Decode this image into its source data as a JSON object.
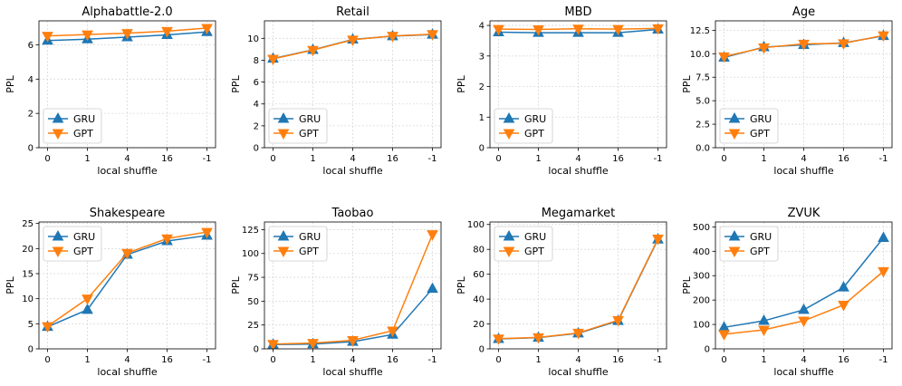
{
  "colors": {
    "gru": "#1f77b4",
    "gpt": "#ff7f0e"
  },
  "chart_data": [
    {
      "type": "line",
      "title": "Alphabattle-2.0",
      "xlabel": "local shuffle",
      "ylabel": "PPL",
      "categories": [
        "0",
        "1",
        "4",
        "16",
        "-1"
      ],
      "ylim": [
        0,
        7.4
      ],
      "yticks": [
        0,
        2,
        4,
        6
      ],
      "ytick_labels": [
        "0",
        "2",
        "4",
        "6"
      ],
      "legend": "lower-left",
      "series": [
        {
          "name": "GRU",
          "values": [
            6.25,
            6.33,
            6.45,
            6.58,
            6.75
          ]
        },
        {
          "name": "GPT",
          "values": [
            6.52,
            6.6,
            6.68,
            6.8,
            6.98
          ]
        }
      ]
    },
    {
      "type": "line",
      "title": "Retail",
      "xlabel": "local shuffle",
      "ylabel": "PPL",
      "categories": [
        "0",
        "1",
        "4",
        "16",
        "-1"
      ],
      "ylim": [
        0,
        11.6
      ],
      "yticks": [
        0,
        2,
        4,
        6,
        8,
        10
      ],
      "ytick_labels": [
        "0",
        "2",
        "4",
        "6",
        "8",
        "10"
      ],
      "legend": "lower-left",
      "series": [
        {
          "name": "GRU",
          "values": [
            8.15,
            8.95,
            9.9,
            10.2,
            10.35
          ]
        },
        {
          "name": "GPT",
          "values": [
            8.12,
            8.93,
            9.87,
            10.22,
            10.38
          ]
        }
      ]
    },
    {
      "type": "line",
      "title": "MBD",
      "xlabel": "local shuffle",
      "ylabel": "PPL",
      "categories": [
        "0",
        "1",
        "4",
        "16",
        "-1"
      ],
      "ylim": [
        0,
        4.15
      ],
      "yticks": [
        0,
        1,
        2,
        3,
        4
      ],
      "ytick_labels": [
        "0",
        "1",
        "2",
        "3",
        "4"
      ],
      "legend": "lower-left",
      "series": [
        {
          "name": "GRU",
          "values": [
            3.78,
            3.76,
            3.76,
            3.76,
            3.87
          ]
        },
        {
          "name": "GPT",
          "values": [
            3.88,
            3.87,
            3.89,
            3.88,
            3.9
          ]
        }
      ]
    },
    {
      "type": "line",
      "title": "Age",
      "xlabel": "local shuffle",
      "ylabel": "PPL",
      "categories": [
        "0",
        "1",
        "4",
        "16",
        "-1"
      ],
      "ylim": [
        0,
        13.5
      ],
      "yticks": [
        0,
        2.5,
        5,
        7.5,
        10,
        12.5
      ],
      "ytick_labels": [
        "0.0",
        "2.5",
        "5.0",
        "7.5",
        "10.0",
        "12.5"
      ],
      "legend": "lower-left",
      "series": [
        {
          "name": "GRU",
          "values": [
            9.6,
            10.7,
            10.95,
            11.15,
            11.9
          ]
        },
        {
          "name": "GPT",
          "values": [
            9.7,
            10.65,
            11.05,
            11.1,
            11.95
          ]
        }
      ]
    },
    {
      "type": "line",
      "title": "Shakespeare",
      "xlabel": "local shuffle",
      "ylabel": "PPL",
      "categories": [
        "0",
        "1",
        "4",
        "16",
        "-1"
      ],
      "ylim": [
        0,
        25.3
      ],
      "yticks": [
        0,
        5,
        10,
        15,
        20,
        25
      ],
      "ytick_labels": [
        "0",
        "5",
        "10",
        "15",
        "20",
        "25"
      ],
      "legend": "upper-left",
      "series": [
        {
          "name": "GRU",
          "values": [
            4.4,
            7.8,
            18.8,
            21.5,
            22.6
          ]
        },
        {
          "name": "GPT",
          "values": [
            4.5,
            10.0,
            19.1,
            22.0,
            23.3
          ]
        }
      ]
    },
    {
      "type": "line",
      "title": "Taobao",
      "xlabel": "local shuffle",
      "ylabel": "PPL",
      "categories": [
        "0",
        "1",
        "4",
        "16",
        "-1"
      ],
      "ylim": [
        0,
        133
      ],
      "yticks": [
        0,
        25,
        50,
        75,
        100,
        125
      ],
      "ytick_labels": [
        "0",
        "25",
        "50",
        "75",
        "100",
        "125"
      ],
      "legend": "upper-left",
      "series": [
        {
          "name": "GRU",
          "values": [
            4.5,
            5.0,
            7.5,
            15.0,
            63.0
          ]
        },
        {
          "name": "GPT",
          "values": [
            5.0,
            6.0,
            9.0,
            19.0,
            120.0
          ]
        }
      ]
    },
    {
      "type": "line",
      "title": "Megamarket",
      "xlabel": "local shuffle",
      "ylabel": "PPL",
      "categories": [
        "0",
        "1",
        "4",
        "16",
        "-1"
      ],
      "ylim": [
        0,
        102
      ],
      "yticks": [
        0,
        20,
        40,
        60,
        80,
        100
      ],
      "ytick_labels": [
        "0",
        "20",
        "40",
        "60",
        "80",
        "100"
      ],
      "legend": "upper-left",
      "series": [
        {
          "name": "GRU",
          "values": [
            8.0,
            9.0,
            12.5,
            22.5,
            88.0
          ]
        },
        {
          "name": "GPT",
          "values": [
            8.2,
            9.2,
            12.8,
            23.0,
            88.5
          ]
        }
      ]
    },
    {
      "type": "line",
      "title": "ZVUK",
      "xlabel": "local shuffle",
      "ylabel": "PPL",
      "categories": [
        "0",
        "1",
        "4",
        "16",
        "-1"
      ],
      "ylim": [
        0,
        520
      ],
      "yticks": [
        0,
        100,
        200,
        300,
        400,
        500
      ],
      "ytick_labels": [
        "0",
        "100",
        "200",
        "300",
        "400",
        "500"
      ],
      "legend": "upper-left",
      "series": [
        {
          "name": "GRU",
          "values": [
            88,
            115,
            160,
            252,
            455
          ]
        },
        {
          "name": "GPT",
          "values": [
            60,
            78,
            115,
            180,
            318
          ]
        }
      ]
    }
  ]
}
